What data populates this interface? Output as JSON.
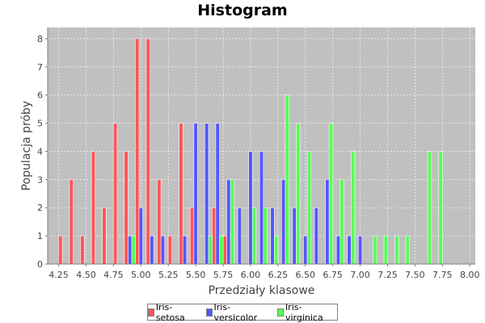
{
  "chart_data": {
    "type": "bar",
    "title": "Histogram",
    "xlabel": "Przedziały klasowe",
    "ylabel": "Populacja próby",
    "xlim": [
      4.15,
      8.05
    ],
    "ylim": [
      0,
      8.4
    ],
    "x_ticks": [
      "4.25",
      "4.50",
      "4.75",
      "5.00",
      "5.25",
      "5.50",
      "5.75",
      "6.00",
      "6.25",
      "6.50",
      "6.75",
      "7.00",
      "7.25",
      "7.50",
      "7.75",
      "8.00"
    ],
    "y_ticks": [
      "0",
      "1",
      "2",
      "3",
      "4",
      "5",
      "6",
      "7",
      "8"
    ],
    "grid": true,
    "legend_position": "bottom",
    "series": [
      {
        "name": "Iris-setosa",
        "color": "#ff5555",
        "points": [
          [
            4.3,
            1
          ],
          [
            4.4,
            3
          ],
          [
            4.5,
            1
          ],
          [
            4.6,
            4
          ],
          [
            4.7,
            2
          ],
          [
            4.8,
            5
          ],
          [
            4.9,
            4
          ],
          [
            5.0,
            8
          ],
          [
            5.1,
            8
          ],
          [
            5.2,
            3
          ],
          [
            5.3,
            1
          ],
          [
            5.4,
            5
          ],
          [
            5.5,
            2
          ],
          [
            5.7,
            2
          ],
          [
            5.8,
            1
          ]
        ]
      },
      {
        "name": "Iris-versicolor",
        "color": "#5555ff",
        "points": [
          [
            4.9,
            1
          ],
          [
            5.0,
            2
          ],
          [
            5.1,
            1
          ],
          [
            5.2,
            1
          ],
          [
            5.4,
            1
          ],
          [
            5.5,
            5
          ],
          [
            5.6,
            5
          ],
          [
            5.7,
            5
          ],
          [
            5.8,
            3
          ],
          [
            5.9,
            2
          ],
          [
            6.0,
            4
          ],
          [
            6.1,
            4
          ],
          [
            6.2,
            2
          ],
          [
            6.3,
            3
          ],
          [
            6.4,
            2
          ],
          [
            6.5,
            1
          ],
          [
            6.6,
            2
          ],
          [
            6.7,
            3
          ],
          [
            6.8,
            1
          ],
          [
            6.9,
            1
          ],
          [
            7.0,
            1
          ]
        ]
      },
      {
        "name": "Iris-virginica",
        "color": "#55ff55",
        "points": [
          [
            4.9,
            1
          ],
          [
            5.6,
            1
          ],
          [
            5.7,
            1
          ],
          [
            5.8,
            3
          ],
          [
            6.0,
            2
          ],
          [
            6.1,
            2
          ],
          [
            6.2,
            1
          ],
          [
            6.3,
            6
          ],
          [
            6.4,
            5
          ],
          [
            6.5,
            4
          ],
          [
            6.7,
            5
          ],
          [
            6.8,
            3
          ],
          [
            6.9,
            4
          ],
          [
            7.1,
            1
          ],
          [
            7.2,
            1
          ],
          [
            7.3,
            1
          ],
          [
            7.4,
            1
          ],
          [
            7.6,
            4
          ],
          [
            7.7,
            4
          ]
        ]
      }
    ]
  }
}
